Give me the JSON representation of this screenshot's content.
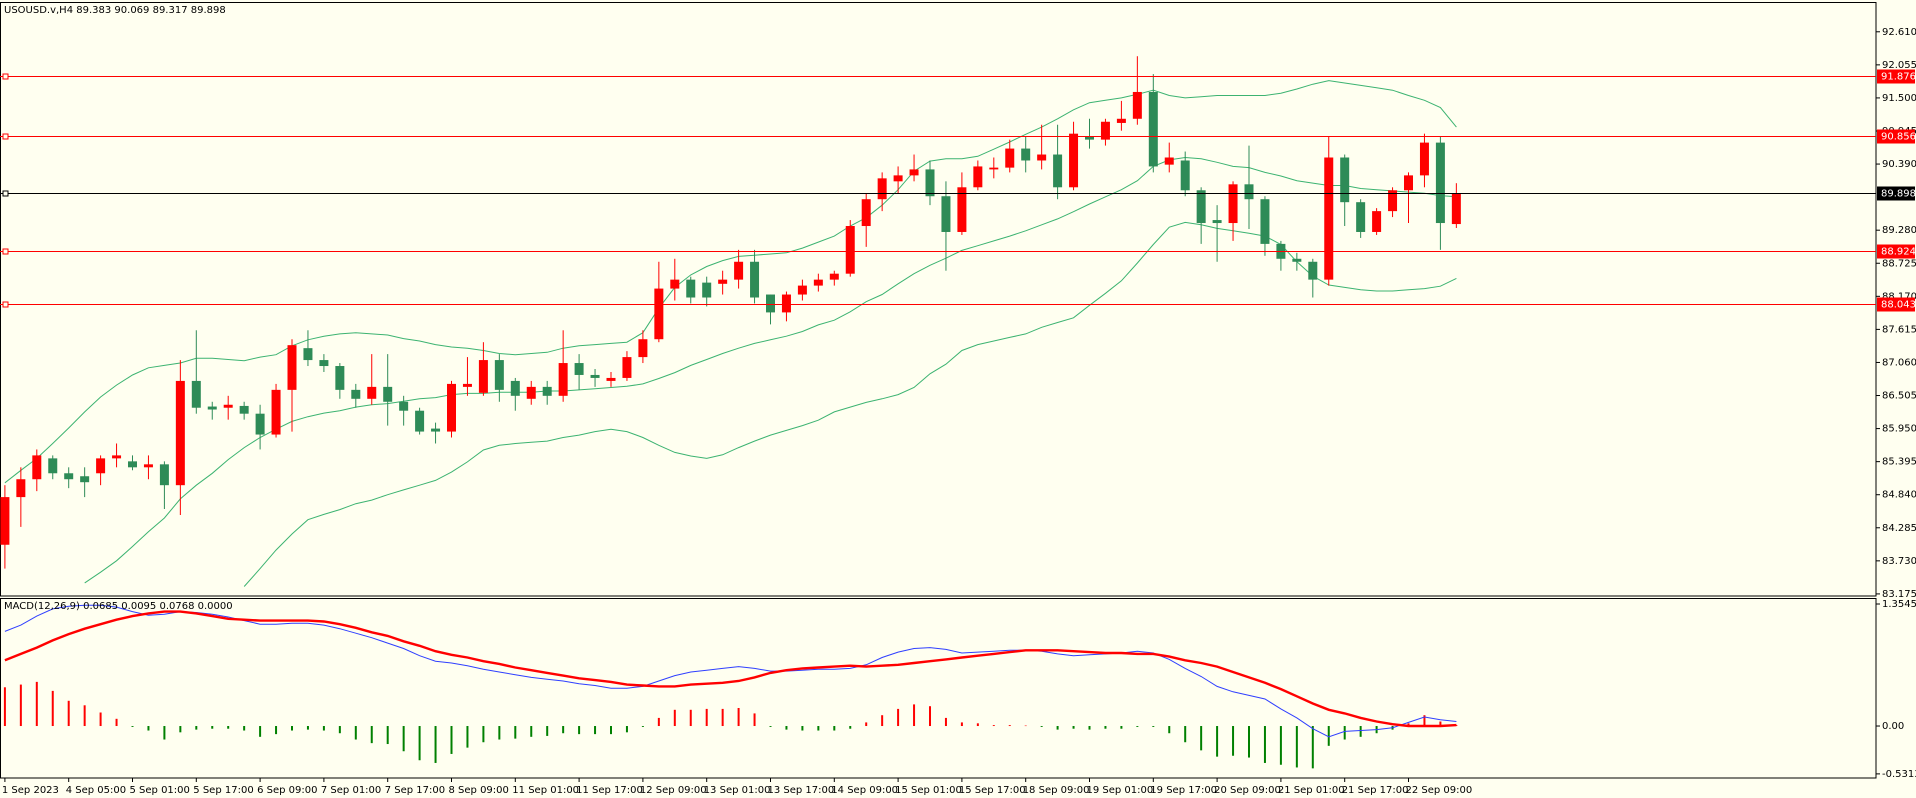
{
  "chart_data": [
    {
      "type": "candlestick",
      "title": "USOUSD.v,H4  89.383 90.069 89.317 89.898",
      "categories": [
        "1 Sep 2023",
        null,
        null,
        null,
        "4 Sep 05:00",
        null,
        null,
        null,
        "5 Sep 01:00",
        null,
        null,
        null,
        "5 Sep 17:00",
        null,
        null,
        null,
        "6 Sep 09:00",
        null,
        null,
        null,
        "7 Sep 01:00",
        null,
        null,
        null,
        "7 Sep 17:00",
        null,
        null,
        null,
        "8 Sep 09:00",
        null,
        null,
        null,
        "11 Sep 01:00",
        null,
        null,
        null,
        "11 Sep 17:00",
        null,
        null,
        null,
        "12 Sep 09:00",
        null,
        null,
        null,
        "13 Sep 01:00",
        null,
        null,
        null,
        "13 Sep 17:00",
        null,
        null,
        null,
        "14 Sep 09:00",
        null,
        null,
        null,
        "15 Sep 01:00",
        null,
        null,
        null,
        "15 Sep 17:00",
        null,
        null,
        null,
        "18 Sep 09:00",
        null,
        null,
        null,
        "19 Sep 01:00",
        null,
        null,
        null,
        "19 Sep 17:00",
        null,
        null,
        null,
        "20 Sep 09:00",
        null,
        null,
        null,
        "21 Sep 01:00",
        null,
        null,
        null,
        "21 Sep 17:00",
        null,
        null,
        null,
        "22 Sep 09:00",
        null,
        null,
        null
      ],
      "open": [
        84.0,
        84.8,
        85.1,
        85.45,
        85.2,
        85.15,
        85.2,
        85.45,
        85.4,
        85.3,
        85.35,
        85.0,
        86.75,
        86.32,
        86.3,
        86.33,
        86.2,
        85.85,
        86.6,
        87.3,
        87.1,
        87.0,
        86.6,
        86.45,
        86.65,
        86.4,
        86.25,
        85.95,
        85.9,
        86.65,
        86.55,
        87.1,
        86.75,
        86.45,
        86.65,
        86.5,
        87.05,
        86.85,
        86.75,
        86.8,
        87.15,
        87.45,
        88.3,
        88.45,
        88.4,
        88.38,
        88.45,
        88.75,
        88.2,
        87.9,
        88.2,
        88.35,
        88.45,
        88.55,
        89.35,
        89.8,
        90.1,
        90.2,
        90.3,
        89.85,
        89.25,
        90.0,
        90.3,
        90.33,
        90.65,
        90.45,
        90.55,
        90.0,
        90.85,
        90.8,
        91.08,
        91.15,
        91.6,
        90.38,
        90.45,
        89.95,
        89.45,
        89.4,
        90.05,
        89.8,
        89.05,
        88.8,
        88.75,
        88.45,
        90.5,
        89.75,
        89.25,
        89.6,
        89.95,
        90.2,
        90.75,
        89.383
      ],
      "high": [
        85.0,
        85.3,
        85.6,
        85.5,
        85.3,
        85.3,
        85.5,
        85.7,
        85.5,
        85.5,
        85.4,
        87.1,
        87.6,
        86.4,
        86.5,
        86.4,
        86.35,
        86.7,
        87.45,
        87.6,
        87.2,
        87.05,
        86.7,
        87.2,
        87.2,
        86.5,
        86.3,
        86.05,
        86.75,
        87.15,
        87.4,
        87.2,
        86.8,
        86.75,
        86.75,
        87.6,
        87.2,
        86.95,
        86.9,
        87.25,
        87.6,
        88.75,
        88.8,
        88.5,
        88.5,
        88.6,
        88.95,
        88.95,
        88.2,
        88.25,
        88.45,
        88.55,
        88.6,
        89.45,
        89.9,
        90.25,
        90.35,
        90.55,
        90.45,
        90.1,
        90.25,
        90.45,
        90.5,
        90.8,
        90.85,
        91.05,
        91.05,
        91.1,
        91.15,
        91.15,
        91.45,
        92.2,
        91.9,
        90.75,
        90.6,
        90.0,
        89.7,
        90.1,
        90.7,
        89.85,
        89.1,
        88.9,
        88.8,
        90.85,
        90.55,
        89.8,
        89.65,
        90.0,
        90.25,
        90.9,
        90.85,
        90.069
      ],
      "low": [
        83.6,
        84.3,
        84.9,
        85.1,
        84.95,
        84.8,
        85.0,
        85.3,
        85.25,
        85.1,
        84.6,
        84.5,
        86.2,
        86.1,
        86.1,
        86.1,
        85.6,
        85.8,
        85.9,
        87.0,
        86.9,
        86.45,
        86.3,
        86.35,
        86.0,
        86.0,
        85.85,
        85.7,
        85.8,
        86.5,
        86.5,
        86.4,
        86.25,
        86.35,
        86.35,
        86.4,
        86.6,
        86.65,
        86.65,
        86.75,
        87.05,
        87.4,
        88.1,
        88.05,
        88.0,
        88.2,
        88.3,
        88.05,
        87.7,
        87.75,
        88.1,
        88.25,
        88.35,
        88.5,
        89.0,
        89.6,
        89.9,
        90.1,
        89.7,
        88.6,
        89.2,
        89.95,
        90.15,
        90.25,
        90.25,
        90.3,
        89.8,
        89.95,
        90.65,
        90.7,
        90.95,
        91.05,
        90.25,
        90.25,
        89.85,
        89.05,
        88.75,
        89.1,
        89.3,
        88.85,
        88.6,
        88.6,
        88.15,
        88.35,
        89.35,
        89.15,
        89.2,
        89.5,
        89.4,
        90.0,
        88.95,
        89.317
      ],
      "close": [
        84.8,
        85.1,
        85.5,
        85.2,
        85.1,
        85.05,
        85.45,
        85.5,
        85.3,
        85.35,
        85.0,
        86.75,
        86.3,
        86.27,
        86.35,
        86.2,
        85.85,
        86.6,
        87.35,
        87.1,
        87.0,
        86.6,
        86.45,
        86.65,
        86.4,
        86.25,
        85.9,
        85.9,
        86.7,
        86.7,
        87.1,
        86.6,
        86.5,
        86.65,
        86.5,
        87.05,
        86.85,
        86.8,
        86.8,
        87.15,
        87.45,
        88.3,
        88.45,
        88.15,
        88.15,
        88.45,
        88.75,
        88.15,
        87.9,
        88.2,
        88.35,
        88.45,
        88.55,
        89.35,
        89.8,
        90.15,
        90.2,
        90.3,
        89.85,
        89.25,
        90.0,
        90.35,
        90.33,
        90.65,
        90.45,
        90.55,
        90.0,
        90.9,
        90.8,
        91.1,
        91.15,
        91.6,
        90.35,
        90.5,
        89.95,
        89.4,
        89.4,
        90.05,
        89.8,
        89.05,
        88.8,
        88.75,
        88.45,
        90.5,
        89.75,
        89.25,
        89.6,
        89.95,
        90.2,
        90.75,
        89.4,
        89.898
      ],
      "up_color": "#ff0000",
      "down_color": "#2e8b57",
      "series": [
        {
          "color": "#3cb371",
          "values": [
            85.04,
            85.25,
            85.45,
            85.7,
            85.96,
            86.23,
            86.48,
            86.68,
            86.85,
            86.97,
            87.01,
            87.05,
            87.13,
            87.13,
            87.11,
            87.09,
            87.15,
            87.19,
            87.34,
            87.44,
            87.5,
            87.54,
            87.56,
            87.54,
            87.52,
            87.46,
            87.42,
            87.36,
            87.32,
            87.3,
            87.26,
            87.21,
            87.19,
            87.21,
            87.23,
            87.3,
            87.34,
            87.36,
            87.38,
            87.4,
            87.56,
            87.97,
            88.32,
            88.53,
            88.67,
            88.77,
            88.84,
            88.86,
            88.88,
            88.9,
            88.98,
            89.08,
            89.18,
            89.35,
            89.49,
            89.7,
            89.96,
            90.27,
            90.44,
            90.48,
            90.48,
            90.52,
            90.64,
            90.76,
            90.89,
            91.01,
            91.15,
            91.3,
            91.42,
            91.46,
            91.5,
            91.56,
            91.63,
            91.54,
            91.5,
            91.52,
            91.54,
            91.54,
            91.54,
            91.54,
            91.58,
            91.65,
            91.73,
            91.79,
            91.75,
            91.71,
            91.67,
            91.63,
            91.54,
            91.46,
            91.34,
            91.01
          ]
        },
        {
          "color": "#3cb371",
          "values": [
            null,
            null,
            null,
            null,
            null,
            83.36,
            83.54,
            83.73,
            83.97,
            84.22,
            84.45,
            84.77,
            85.0,
            85.2,
            85.43,
            85.63,
            85.8,
            85.94,
            86.07,
            86.15,
            86.21,
            86.25,
            86.31,
            86.35,
            86.37,
            86.41,
            86.45,
            86.47,
            86.52,
            86.54,
            86.54,
            86.56,
            86.56,
            86.56,
            86.58,
            86.58,
            86.6,
            86.62,
            86.64,
            86.66,
            86.7,
            86.79,
            86.89,
            87.01,
            87.11,
            87.21,
            87.3,
            87.38,
            87.44,
            87.5,
            87.58,
            87.69,
            87.77,
            87.91,
            88.08,
            88.2,
            88.38,
            88.55,
            88.69,
            88.81,
            88.94,
            89.02,
            89.1,
            89.18,
            89.27,
            89.37,
            89.47,
            89.59,
            89.72,
            89.84,
            89.96,
            90.11,
            90.35,
            90.46,
            90.5,
            90.48,
            90.42,
            90.35,
            90.33,
            90.25,
            90.19,
            90.11,
            90.07,
            90.03,
            90.03,
            89.98,
            89.96,
            89.94,
            89.92,
            89.9,
            89.86,
            89.84
          ]
        },
        {
          "color": "#3cb371",
          "values": [
            null,
            null,
            null,
            null,
            null,
            null,
            null,
            null,
            null,
            null,
            null,
            null,
            null,
            null,
            null,
            83.3,
            83.6,
            83.91,
            84.18,
            84.42,
            84.51,
            84.59,
            84.69,
            84.75,
            84.84,
            84.92,
            85.0,
            85.08,
            85.22,
            85.39,
            85.59,
            85.67,
            85.7,
            85.72,
            85.74,
            85.8,
            85.84,
            85.9,
            85.94,
            85.9,
            85.8,
            85.67,
            85.55,
            85.49,
            85.45,
            85.51,
            85.63,
            85.74,
            85.84,
            85.92,
            86.0,
            86.09,
            86.23,
            86.31,
            86.39,
            86.45,
            86.52,
            86.64,
            86.87,
            87.03,
            87.26,
            87.36,
            87.42,
            87.48,
            87.54,
            87.65,
            87.73,
            87.81,
            88.02,
            88.22,
            88.43,
            88.73,
            89.04,
            89.33,
            89.41,
            89.37,
            89.31,
            89.27,
            89.23,
            89.18,
            89.04,
            88.75,
            88.51,
            88.36,
            88.32,
            88.28,
            88.26,
            88.26,
            88.28,
            88.3,
            88.34,
            88.47
          ]
        }
      ],
      "hlines": [
        {
          "value": 91.876,
          "color": "#ff0000"
        },
        {
          "value": 90.856,
          "color": "#ff0000"
        },
        {
          "value": 89.898,
          "color": "#000000"
        },
        {
          "value": 88.924,
          "color": "#ff0000"
        },
        {
          "value": 88.043,
          "color": "#ff0000"
        }
      ],
      "ylim": [
        83.14,
        93.11
      ],
      "yticks": [
        {
          "value": 92.61,
          "label": "92.610"
        },
        92.055,
        {
          "value": 91.5,
          "label": "91.500"
        },
        90.945,
        {
          "value": 90.39,
          "label": "90.390"
        },
        {
          "value": 89.28,
          "label": "89.280"
        },
        88.725,
        {
          "value": 88.17,
          "label": "88.170"
        },
        87.615,
        {
          "value": 87.06,
          "label": "87.060"
        },
        86.505,
        {
          "value": 85.95,
          "label": "85.950"
        },
        85.395,
        {
          "value": 84.84,
          "label": "84.840"
        },
        84.285,
        {
          "value": 83.73,
          "label": "83.730"
        },
        83.175
      ]
    },
    {
      "type": "macd",
      "title": "MACD(12,26,9) 0.0685 0.0095 0.0768 0.0000",
      "histogram": [
        0.43,
        0.46,
        0.49,
        0.39,
        0.28,
        0.23,
        0.15,
        0.08,
        -0.01,
        -0.05,
        -0.15,
        -0.07,
        -0.04,
        -0.03,
        -0.03,
        -0.05,
        -0.12,
        -0.09,
        -0.05,
        -0.04,
        -0.05,
        -0.08,
        -0.15,
        -0.19,
        -0.2,
        -0.28,
        -0.38,
        -0.41,
        -0.31,
        -0.24,
        -0.18,
        -0.15,
        -0.14,
        -0.12,
        -0.11,
        -0.08,
        -0.09,
        -0.09,
        -0.09,
        -0.07,
        -0.01,
        0.09,
        0.18,
        0.18,
        0.19,
        0.19,
        0.2,
        0.14,
        -0.01,
        -0.04,
        -0.05,
        -0.05,
        -0.05,
        -0.03,
        0.04,
        0.12,
        0.19,
        0.24,
        0.22,
        0.09,
        0.04,
        0.03,
        0.01,
        0.01,
        0.005,
        -0.01,
        -0.04,
        -0.03,
        -0.04,
        -0.03,
        -0.03,
        -0.01,
        -0.01,
        -0.08,
        -0.18,
        -0.27,
        -0.34,
        -0.33,
        -0.35,
        -0.41,
        -0.43,
        -0.46,
        -0.47,
        -0.22,
        -0.15,
        -0.12,
        -0.08,
        -0.04,
        0.03,
        0.12,
        0.05,
        0.01
      ],
      "up_color": "#ff0000",
      "down_color": "#008000",
      "series": [
        {
          "color": "#2f3fff",
          "values": [
            1.05,
            1.12,
            1.22,
            1.3,
            1.33,
            1.34,
            1.34,
            1.32,
            1.27,
            1.23,
            1.24,
            1.27,
            1.26,
            1.24,
            1.21,
            1.17,
            1.13,
            1.13,
            1.14,
            1.14,
            1.12,
            1.08,
            1.03,
            0.98,
            0.92,
            0.86,
            0.78,
            0.72,
            0.7,
            0.67,
            0.63,
            0.6,
            0.57,
            0.54,
            0.52,
            0.5,
            0.47,
            0.45,
            0.42,
            0.42,
            0.44,
            0.5,
            0.56,
            0.6,
            0.62,
            0.64,
            0.66,
            0.64,
            0.61,
            0.61,
            0.62,
            0.63,
            0.63,
            0.64,
            0.68,
            0.76,
            0.82,
            0.86,
            0.87,
            0.85,
            0.81,
            0.82,
            0.83,
            0.84,
            0.84,
            0.83,
            0.8,
            0.78,
            0.79,
            0.8,
            0.81,
            0.83,
            0.81,
            0.74,
            0.64,
            0.55,
            0.44,
            0.38,
            0.34,
            0.3,
            0.19,
            0.09,
            -0.03,
            -0.12,
            -0.06,
            -0.05,
            -0.04,
            -0.02,
            0.04,
            0.1,
            0.07,
            0.05
          ]
        },
        {
          "color": "#ff0000",
          "values": [
            0.73,
            0.8,
            0.87,
            0.95,
            1.02,
            1.08,
            1.13,
            1.18,
            1.22,
            1.25,
            1.27,
            1.27,
            1.25,
            1.22,
            1.19,
            1.18,
            1.17,
            1.17,
            1.17,
            1.17,
            1.16,
            1.13,
            1.09,
            1.04,
            1.0,
            0.94,
            0.89,
            0.83,
            0.79,
            0.76,
            0.72,
            0.69,
            0.65,
            0.62,
            0.59,
            0.56,
            0.53,
            0.51,
            0.49,
            0.46,
            0.45,
            0.44,
            0.44,
            0.46,
            0.47,
            0.48,
            0.5,
            0.54,
            0.59,
            0.62,
            0.64,
            0.65,
            0.66,
            0.67,
            0.66,
            0.67,
            0.68,
            0.7,
            0.72,
            0.74,
            0.76,
            0.78,
            0.8,
            0.82,
            0.84,
            0.84,
            0.84,
            0.83,
            0.82,
            0.81,
            0.81,
            0.8,
            0.8,
            0.77,
            0.73,
            0.7,
            0.66,
            0.6,
            0.54,
            0.48,
            0.41,
            0.33,
            0.25,
            0.18,
            0.14,
            0.09,
            0.05,
            0.02,
            0.0,
            0.0,
            0.0,
            0.01
          ]
        }
      ],
      "ylim": [
        -0.577,
        1.421
      ],
      "yticks": [
        1.3545,
        {
          "value": 0,
          "label": "0.00"
        },
        -0.5313
      ]
    }
  ]
}
